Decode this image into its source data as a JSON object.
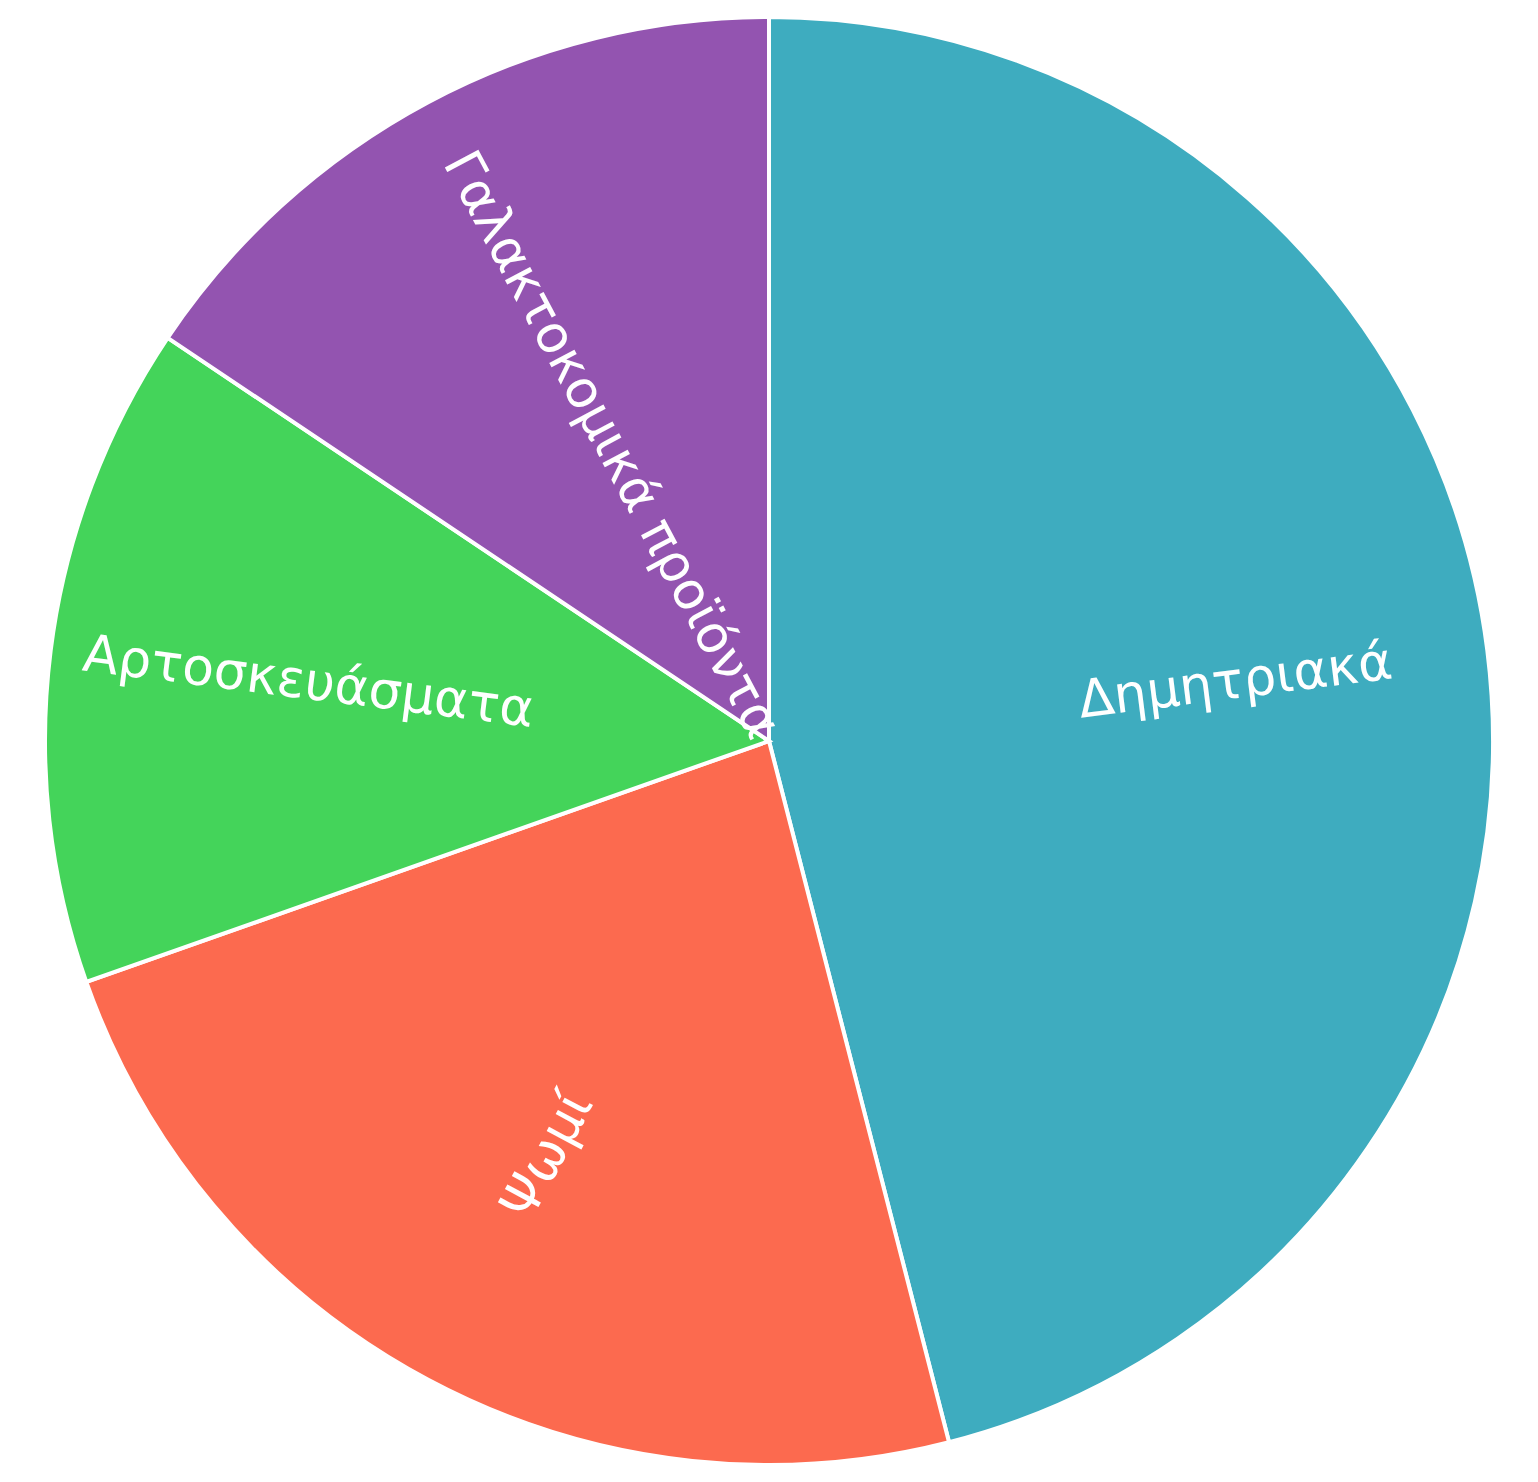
{
  "chart_data": {
    "type": "pie",
    "categories": [
      "Δημητριακά",
      "Ψωμί",
      "Αρτοσκευάσματα",
      "Γαλακτοκομικά προϊόντα"
    ],
    "values": [
      46,
      23.6,
      14.8,
      15.6
    ],
    "colors": [
      "#3eacbf",
      "#fc6a4f",
      "#44d45a",
      "#9354b0"
    ]
  }
}
